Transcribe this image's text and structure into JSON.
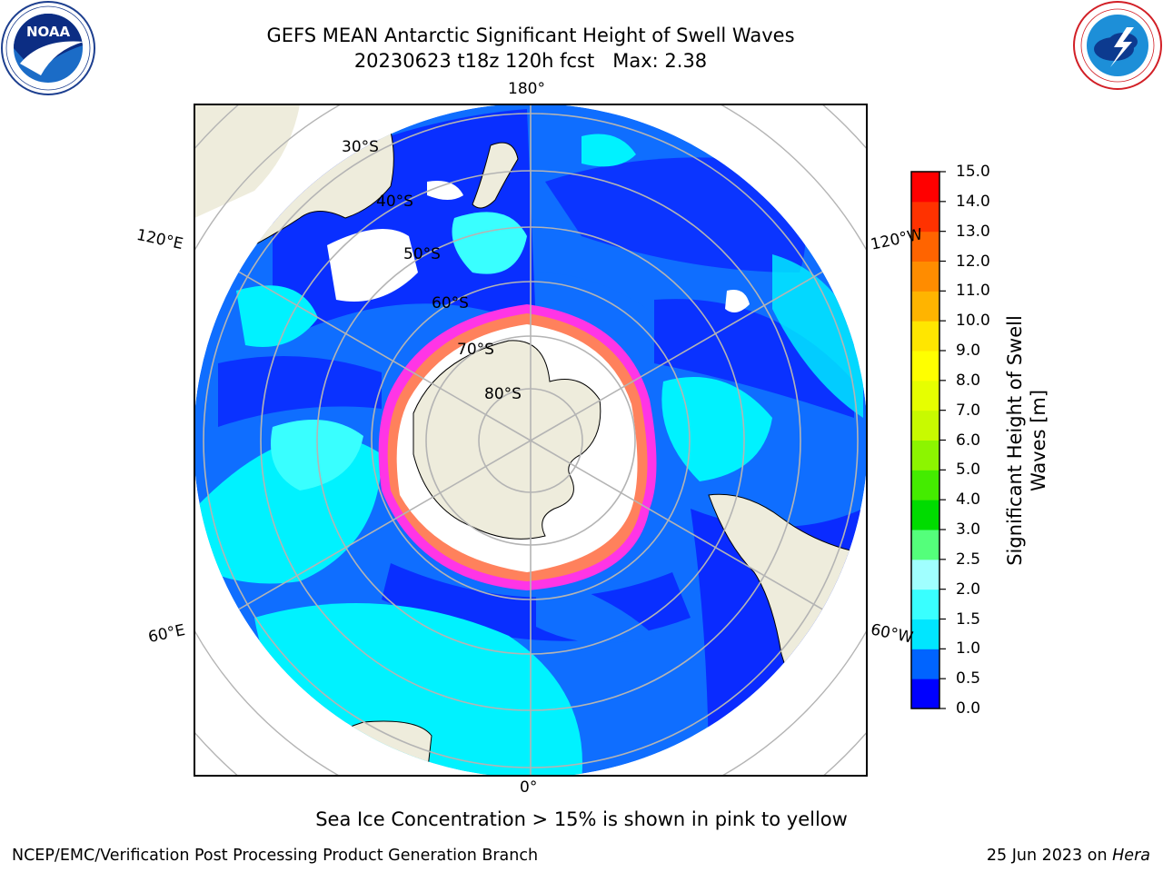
{
  "header": {
    "title_line1": "GEFS MEAN Antarctic Significant Height of Swell Waves",
    "title_line2": "20230623 t18z 120h fcst   Max: 2.38"
  },
  "logos": {
    "left": {
      "name": "NOAA",
      "ring_text": "NATIONAL OCEANIC AND ATMOSPHERIC ADMINISTRATION · U.S. DEPARTMENT OF COMMERCE"
    },
    "right": {
      "name": "NATIONAL WEATHER SERVICE"
    }
  },
  "map": {
    "projection": "south-polar-stereographic",
    "longitude_labels": {
      "top": "180°",
      "bottom": "0°",
      "left_upper": "120°E",
      "left_lower": "60°E",
      "right_upper": "120°W",
      "right_lower": "60°W"
    },
    "latitude_labels": [
      "30°S",
      "40°S",
      "50°S",
      "60°S",
      "70°S",
      "80°S"
    ],
    "colors": {
      "ocean_low": "#0a2bff",
      "ocean_mid": "#0f6eff",
      "ocean_high": "#00f2ff",
      "land": "#eeecdc",
      "ice": "#ffffff",
      "ice_edge": "#ff35e6",
      "grid": "#b4b4b4"
    }
  },
  "colorbar": {
    "label_line1": "Significant Height of Swell",
    "label_line2": "Waves [m]",
    "ticks": [
      "0.0",
      "0.5",
      "1.0",
      "1.5",
      "2.0",
      "2.5",
      "3.0",
      "4.0",
      "5.0",
      "6.0",
      "7.0",
      "8.0",
      "9.0",
      "10.0",
      "11.0",
      "12.0",
      "13.0",
      "14.0",
      "15.0"
    ],
    "colors": [
      "#0000ff",
      "#0064ff",
      "#00e6ff",
      "#39ffff",
      "#a0ffff",
      "#54ff7b",
      "#00dc00",
      "#44ec00",
      "#8cf500",
      "#c8fa00",
      "#e6ff00",
      "#ffff00",
      "#ffe600",
      "#ffb400",
      "#ff8c00",
      "#ff6400",
      "#ff3200",
      "#ff0000"
    ]
  },
  "footer": {
    "note": "Sea Ice Concentration > 15% is shown in pink to yellow",
    "left": "NCEP/EMC/Verification Post Processing Product Generation Branch",
    "right_date": "25 Jun 2023 on",
    "right_host": "Hera"
  }
}
